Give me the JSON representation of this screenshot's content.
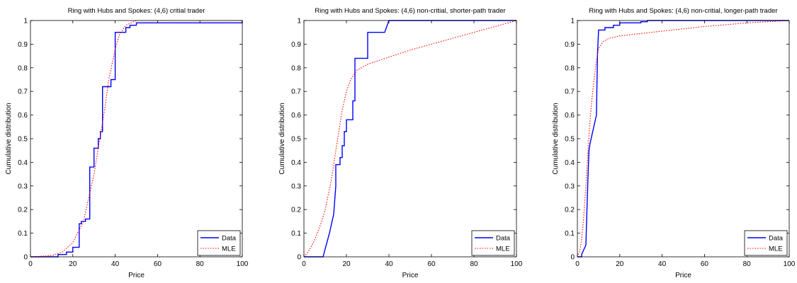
{
  "chart_data": [
    {
      "type": "line",
      "title": "Ring with Hubs and Spokes: (4,6) critial trader",
      "xlabel": "Price",
      "ylabel": "Cumulative distribution",
      "xlim": [
        0,
        100
      ],
      "ylim": [
        0,
        1
      ],
      "xticks": [
        "0",
        "20",
        "40",
        "60",
        "80",
        "100"
      ],
      "yticks": [
        "0",
        "0.1",
        "0.2",
        "0.3",
        "0.4",
        "0.5",
        "0.6",
        "0.7",
        "0.8",
        "0.9",
        "1"
      ],
      "grid": false,
      "legend": "bottom-right",
      "series": [
        {
          "name": "Data",
          "style": "solid",
          "color": "#0000ff",
          "x": [
            0,
            13,
            13,
            17,
            17,
            20,
            20,
            23,
            23,
            24,
            24,
            26,
            26,
            28,
            28,
            30,
            30,
            32,
            32,
            33,
            33,
            34,
            34,
            38,
            38,
            40,
            40,
            45,
            45,
            47,
            47,
            50,
            50,
            100,
            100
          ],
          "y": [
            0,
            0,
            0.01,
            0.01,
            0.02,
            0.02,
            0.04,
            0.04,
            0.14,
            0.14,
            0.15,
            0.15,
            0.16,
            0.16,
            0.38,
            0.38,
            0.46,
            0.46,
            0.5,
            0.5,
            0.53,
            0.53,
            0.72,
            0.72,
            0.75,
            0.75,
            0.95,
            0.95,
            0.97,
            0.97,
            0.98,
            0.98,
            0.99,
            0.99,
            1.0
          ]
        },
        {
          "name": "MLE",
          "style": "dotted",
          "color": "#ff0000",
          "x": [
            0,
            10,
            15,
            20,
            25,
            30,
            32,
            35,
            37,
            40,
            42,
            45,
            50,
            100
          ],
          "y": [
            0,
            0.005,
            0.02,
            0.06,
            0.15,
            0.35,
            0.46,
            0.62,
            0.75,
            0.88,
            0.94,
            0.98,
            1.0,
            1.0
          ]
        }
      ]
    },
    {
      "type": "line",
      "title": "Ring with Hubs and Spokes: (4,6) non-critial, shorter-path trader",
      "xlabel": "Price",
      "ylabel": "Cumulative distribution",
      "xlim": [
        0,
        100
      ],
      "ylim": [
        0,
        1
      ],
      "xticks": [
        "0",
        "20",
        "40",
        "60",
        "80",
        "100"
      ],
      "yticks": [
        "0",
        "0.1",
        "0.2",
        "0.3",
        "0.4",
        "0.5",
        "0.6",
        "0.7",
        "0.8",
        "0.9",
        "1"
      ],
      "grid": false,
      "legend": "bottom-right",
      "series": [
        {
          "name": "Data",
          "style": "solid",
          "color": "#0000ff",
          "x": [
            0,
            9,
            12,
            14,
            15,
            15,
            17,
            17,
            18,
            18,
            19,
            19,
            20,
            20,
            23,
            23,
            24,
            24,
            25,
            25,
            30,
            30,
            38,
            38,
            40,
            100
          ],
          "y": [
            0,
            0,
            0.1,
            0.18,
            0.3,
            0.39,
            0.39,
            0.42,
            0.42,
            0.47,
            0.47,
            0.53,
            0.53,
            0.58,
            0.58,
            0.66,
            0.66,
            0.84,
            0.84,
            0.84,
            0.84,
            0.95,
            0.95,
            0.95,
            1.0,
            1.0
          ]
        },
        {
          "name": "MLE",
          "style": "dotted",
          "color": "#ff0000",
          "x": [
            0,
            2,
            5,
            8,
            10,
            13,
            15,
            18,
            20,
            22,
            25,
            30,
            40,
            50,
            60,
            70,
            80,
            90,
            100
          ],
          "y": [
            0,
            0.02,
            0.07,
            0.14,
            0.2,
            0.33,
            0.45,
            0.62,
            0.7,
            0.75,
            0.79,
            0.815,
            0.845,
            0.875,
            0.9,
            0.925,
            0.95,
            0.975,
            1.0
          ]
        }
      ]
    },
    {
      "type": "line",
      "title": "Ring with Hubs and Spokes: (4,6) non-critial, longer-path trader",
      "xlabel": "Price",
      "ylabel": "Cumulative distribution",
      "xlim": [
        0,
        100
      ],
      "ylim": [
        0,
        1
      ],
      "xticks": [
        "0",
        "20",
        "40",
        "60",
        "80",
        "100"
      ],
      "yticks": [
        "0",
        "0.1",
        "0.2",
        "0.3",
        "0.4",
        "0.5",
        "0.6",
        "0.7",
        "0.8",
        "0.9",
        "1"
      ],
      "grid": false,
      "legend": "bottom-right",
      "series": [
        {
          "name": "Data",
          "style": "solid",
          "color": "#0000ff",
          "x": [
            0,
            2,
            2,
            3,
            4,
            4.5,
            5,
            5.5,
            6,
            6.5,
            7,
            8,
            9,
            9.5,
            10,
            13,
            13,
            15,
            15,
            17,
            17,
            20,
            20,
            30,
            30,
            33,
            33,
            35,
            35,
            100
          ],
          "y": [
            0,
            0,
            0.01,
            0.03,
            0.05,
            0.2,
            0.34,
            0.45,
            0.48,
            0.5,
            0.52,
            0.56,
            0.6,
            0.86,
            0.96,
            0.96,
            0.97,
            0.97,
            0.97,
            0.97,
            0.98,
            0.98,
            0.99,
            0.99,
            0.995,
            0.995,
            1.0,
            1.0,
            1.0,
            1.0
          ]
        },
        {
          "name": "MLE",
          "style": "dotted",
          "color": "#ff0000",
          "x": [
            0,
            1,
            2,
            3,
            4,
            5,
            6,
            7,
            8,
            9,
            10,
            12,
            15,
            20,
            30,
            40,
            50,
            60,
            70,
            80,
            90,
            100
          ],
          "y": [
            0,
            0.02,
            0.07,
            0.17,
            0.3,
            0.45,
            0.58,
            0.68,
            0.76,
            0.83,
            0.88,
            0.91,
            0.925,
            0.935,
            0.945,
            0.955,
            0.965,
            0.975,
            0.982,
            0.99,
            0.995,
            1.0
          ]
        }
      ]
    }
  ]
}
